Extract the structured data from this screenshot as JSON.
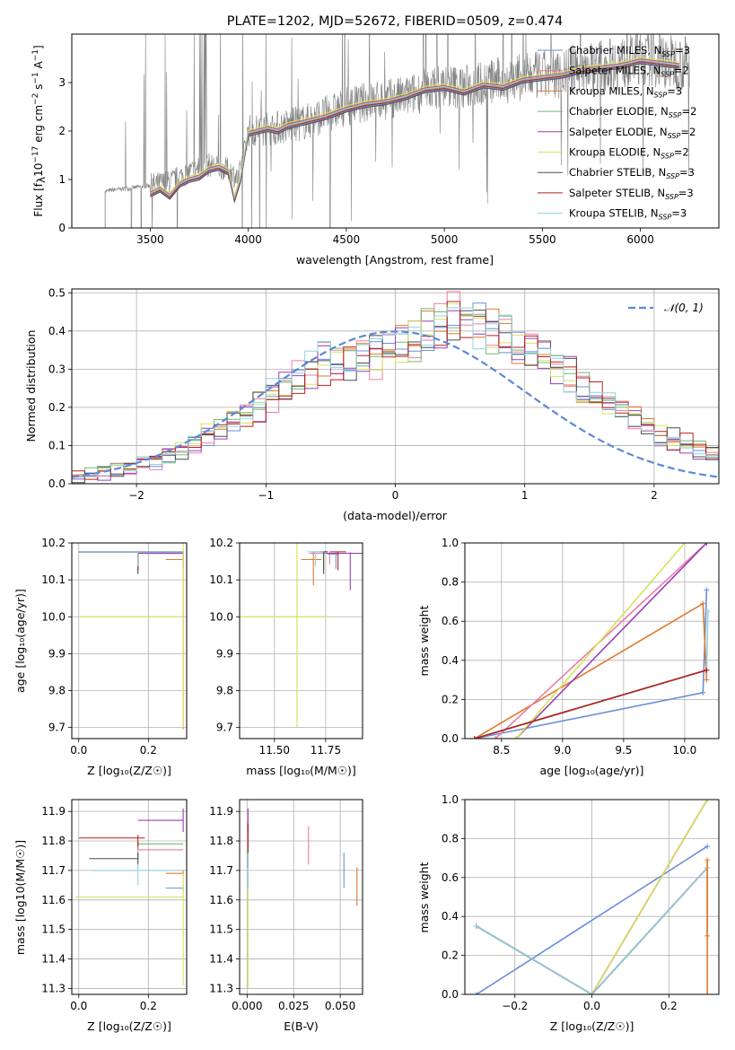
{
  "colors": {
    "Chabrier MILES": "#6a8fd8",
    "Salpeter MILES": "#e87fa6",
    "Kroupa MILES": "#e07a2f",
    "Chabrier ELODIE": "#74b874",
    "Salpeter ELODIE": "#9a3fb8",
    "Kroupa ELODIE": "#d6e35a",
    "Chabrier STELIB": "#4d4d4d",
    "Salpeter STELIB": "#b82020",
    "Kroupa STELIB": "#8fd1e0",
    "data": "#808080",
    "normal": "#5b8ad6"
  },
  "chart_data": [
    {
      "id": "spectrum",
      "type": "line",
      "title": "PLATE=1202, MJD=52672, FIBERID=0509, z=0.474",
      "xlabel": "wavelength [Angstrom, rest frame]",
      "ylabel": "Flux [f_λ 10^-17 erg cm^-2 s^-1 A^-1]",
      "xlim": [
        3100,
        6400
      ],
      "ylim": [
        0,
        4.0
      ],
      "xticks": [
        3500,
        4000,
        4500,
        5000,
        5500,
        6000
      ],
      "yticks": [
        0,
        1,
        2,
        3
      ],
      "legend_position": "top-right",
      "legend": [
        {
          "name": "Chabrier MILES, N_SSP=3"
        },
        {
          "name": "Salpeter MILES, N_SSP=2"
        },
        {
          "name": "Kroupa MILES, N_SSP=3"
        },
        {
          "name": "Chabrier ELODIE, N_SSP=2"
        },
        {
          "name": "Salpeter ELODIE, N_SSP=2"
        },
        {
          "name": "Kroupa ELODIE, N_SSP=2"
        },
        {
          "name": "Chabrier STELIB, N_SSP=3"
        },
        {
          "name": "Salpeter STELIB, N_SSP=3"
        },
        {
          "name": "Kroupa STELIB, N_SSP=3"
        }
      ],
      "data_envelope": {
        "x": [
          3270,
          3300,
          3400,
          3500,
          3600,
          3700,
          3800,
          3900,
          3950,
          4000,
          4100,
          4200,
          4300,
          4400,
          4500,
          4600,
          4700,
          4800,
          4900,
          5000,
          5100,
          5200,
          5300,
          5400,
          5500,
          5600,
          5700,
          5800,
          5900,
          6000,
          6100,
          6200
        ],
        "y": [
          0.75,
          0.78,
          0.82,
          0.88,
          0.95,
          1.15,
          1.3,
          1.2,
          1.0,
          2.0,
          2.05,
          2.1,
          2.2,
          2.35,
          2.5,
          2.6,
          2.65,
          2.7,
          2.85,
          2.95,
          2.9,
          3.0,
          3.05,
          3.1,
          3.15,
          3.2,
          3.3,
          3.35,
          3.4,
          3.5,
          3.45,
          3.4
        ]
      },
      "model": {
        "x": [
          3500,
          3550,
          3600,
          3650,
          3700,
          3750,
          3800,
          3850,
          3900,
          3930,
          3960,
          4000,
          4050,
          4100,
          4150,
          4200,
          4300,
          4400,
          4500,
          4600,
          4700,
          4800,
          4900,
          5000,
          5100,
          5200,
          5300,
          5400,
          5500,
          5600,
          5700,
          5800,
          5900,
          6000,
          6100,
          6200
        ],
        "y": [
          0.7,
          0.8,
          0.65,
          0.9,
          1.0,
          1.05,
          1.2,
          1.25,
          1.15,
          0.6,
          1.0,
          1.95,
          2.0,
          2.05,
          2.0,
          2.1,
          2.2,
          2.3,
          2.45,
          2.55,
          2.6,
          2.7,
          2.85,
          2.9,
          2.8,
          2.95,
          2.9,
          3.05,
          3.1,
          3.15,
          3.25,
          3.3,
          3.35,
          3.45,
          3.4,
          3.35
        ]
      }
    },
    {
      "id": "residuals",
      "type": "line",
      "title": "",
      "xlabel": "(data-model)/error",
      "ylabel": "Normed distribution",
      "xlim": [
        -2.5,
        2.5
      ],
      "ylim": [
        0,
        0.51
      ],
      "xticks": [
        -2,
        -1,
        0,
        1,
        2
      ],
      "yticks": [
        0.0,
        0.1,
        0.2,
        0.3,
        0.4,
        0.5
      ],
      "grid": true,
      "legend_position": "top-right",
      "legend": [
        {
          "name": "𝒩(0, 1)"
        }
      ],
      "histogram_bin_width": 0.1,
      "histogram_typical": [
        0.02,
        0.025,
        0.03,
        0.035,
        0.04,
        0.05,
        0.06,
        0.075,
        0.09,
        0.11,
        0.125,
        0.14,
        0.16,
        0.18,
        0.2,
        0.23,
        0.26,
        0.28,
        0.3,
        0.31,
        0.32,
        0.33,
        0.33,
        0.34,
        0.35,
        0.36,
        0.38,
        0.4,
        0.42,
        0.44,
        0.43,
        0.42,
        0.4,
        0.38,
        0.36,
        0.34,
        0.32,
        0.3,
        0.28,
        0.26,
        0.23,
        0.21,
        0.19,
        0.17,
        0.15,
        0.13,
        0.12,
        0.1,
        0.09,
        0.08
      ]
    },
    {
      "id": "age_vs_Z",
      "type": "scatter",
      "xlabel": "Z [log10(Z/Z☉)]",
      "ylabel": "age [log10(age/yr)]",
      "xlim": [
        -0.02,
        0.31
      ],
      "ylim": [
        9.67,
        10.2
      ],
      "xticks": [
        0.0,
        0.2
      ],
      "yticks": [
        9.7,
        9.8,
        9.9,
        10.0,
        10.1,
        10.2
      ],
      "grid": true
    },
    {
      "id": "age_vs_mass",
      "type": "scatter",
      "xlabel": "mass [log10(M/M☉)]",
      "ylabel": "",
      "xlim": [
        11.33,
        11.93
      ],
      "ylim": [
        9.67,
        10.2
      ],
      "xticks": [
        11.5,
        11.75
      ],
      "yticks": [
        9.7,
        9.8,
        9.9,
        10.0,
        10.1,
        10.2
      ],
      "grid": true
    },
    {
      "id": "weight_vs_age",
      "type": "line",
      "xlabel": "age [log10(age/yr)]",
      "ylabel": "mass weight",
      "xlim": [
        8.2,
        10.28
      ],
      "ylim": [
        0,
        1.0
      ],
      "xticks": [
        8.5,
        9.0,
        9.5,
        10.0
      ],
      "yticks": [
        0.0,
        0.2,
        0.4,
        0.6,
        0.8,
        1.0
      ],
      "grid": true
    },
    {
      "id": "mass_vs_Z",
      "type": "scatter",
      "xlabel": "Z [log10(Z/Z☉)]",
      "ylabel": "mass [log10(M/M☉)]",
      "xlim": [
        -0.02,
        0.31
      ],
      "ylim": [
        11.28,
        11.94
      ],
      "xticks": [
        0.0,
        0.2
      ],
      "yticks": [
        11.3,
        11.4,
        11.5,
        11.6,
        11.7,
        11.8,
        11.9
      ],
      "grid": true
    },
    {
      "id": "mass_vs_EBV",
      "type": "scatter",
      "xlabel": "E(B-V)",
      "ylabel": "",
      "xlim": [
        -0.004,
        0.062
      ],
      "ylim": [
        11.28,
        11.94
      ],
      "xticks": [
        0.0,
        0.025,
        0.05
      ],
      "yticks": [
        11.3,
        11.4,
        11.5,
        11.6,
        11.7,
        11.8,
        11.9
      ],
      "grid": true
    },
    {
      "id": "weight_vs_Z",
      "type": "line",
      "xlabel": "Z [log10(Z/Z☉)]",
      "ylabel": "mass weight",
      "xlim": [
        -0.33,
        0.33
      ],
      "ylim": [
        0,
        1.0
      ],
      "xticks": [
        -0.2,
        0.0,
        0.2
      ],
      "yticks": [
        0.0,
        0.2,
        0.4,
        0.6,
        0.8,
        1.0
      ],
      "grid": true
    }
  ]
}
